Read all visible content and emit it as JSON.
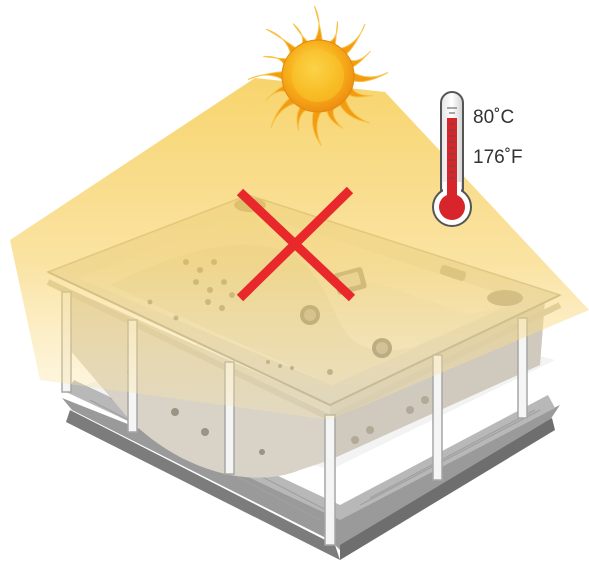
{
  "temperature": {
    "celsius": "80˚C",
    "fahrenheit": "176˚F"
  },
  "colors": {
    "sun_core": "#f7b21b",
    "sun_rays": "#f39c12",
    "light_beam": "#f5c842",
    "cross": "#e8282b",
    "thermometer_red": "#d8242b",
    "tub_frame": "#d9d6cc",
    "tub_base": "#8a8a8a"
  },
  "icons": [
    "sun-icon",
    "thermometer-icon",
    "prohibited-cross-icon",
    "hot-tub-illustration"
  ]
}
